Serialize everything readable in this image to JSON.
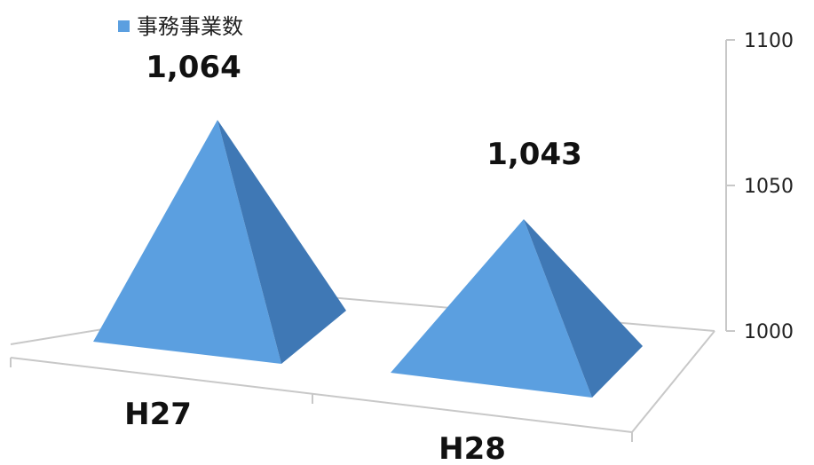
{
  "chart_data": {
    "type": "bar",
    "style": "3d-pyramid",
    "categories": [
      "H27",
      "H28"
    ],
    "series": [
      {
        "name": "事務事業数",
        "values": [
          1064,
          1043
        ]
      }
    ],
    "data_labels": [
      "1,064",
      "1,043"
    ],
    "y_ticks": [
      "1000",
      "1050",
      "1100"
    ],
    "ylim": [
      1000,
      1100
    ],
    "y_axis_position": "right",
    "legend": "top-left",
    "grid": false,
    "colors": {
      "series_front": "#5b9fe0",
      "series_side": "#3f78b5",
      "axis": "#c8c8c8",
      "legend_marker": "#5b9fe0"
    }
  }
}
